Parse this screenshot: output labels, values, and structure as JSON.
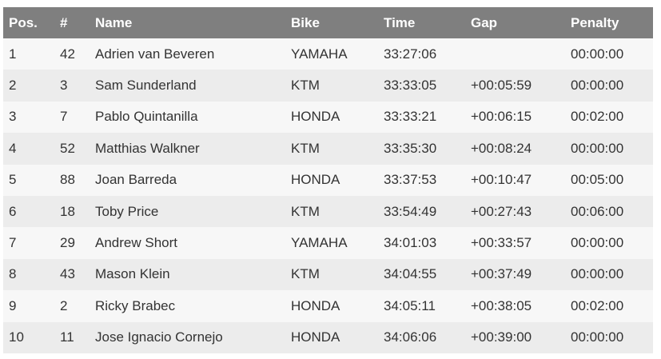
{
  "table": {
    "header": [
      "Pos.",
      "#",
      "Name",
      "Bike",
      "Time",
      "Gap",
      "Penalty"
    ],
    "rows": [
      [
        "1",
        "42",
        "Adrien van Beveren",
        "YAMAHA",
        "33:27:06",
        null,
        "00:00:00"
      ],
      [
        "2",
        "3",
        "Sam Sunderland",
        "KTM",
        "33:33:05",
        "+00:05:59",
        "00:00:00"
      ],
      [
        "3",
        "7",
        "Pablo Quintanilla",
        "HONDA",
        "33:33:21",
        "+00:06:15",
        "00:02:00"
      ],
      [
        "4",
        "52",
        "Matthias Walkner",
        "KTM",
        "33:35:30",
        "+00:08:24",
        "00:00:00"
      ],
      [
        "5",
        "88",
        "Joan Barreda",
        "HONDA",
        "33:37:53",
        "+00:10:47",
        "00:05:00"
      ],
      [
        "6",
        "18",
        "Toby Price",
        "KTM",
        "33:54:49",
        "+00:27:43",
        "00:06:00"
      ],
      [
        "7",
        "29",
        "Andrew Short",
        "YAMAHA",
        "34:01:03",
        "+00:33:57",
        "00:00:00"
      ],
      [
        "8",
        "43",
        "Mason Klein",
        "KTM",
        "34:04:55",
        "+00:37:49",
        "00:00:00"
      ],
      [
        "9",
        "2",
        "Ricky Brabec",
        "HONDA",
        "34:05:11",
        "+00:38:05",
        "00:02:00"
      ],
      [
        "10",
        "11",
        "Jose Ignacio Cornejo",
        "HONDA",
        "34:06:06",
        "+00:39:00",
        "00:00:00"
      ]
    ]
  }
}
